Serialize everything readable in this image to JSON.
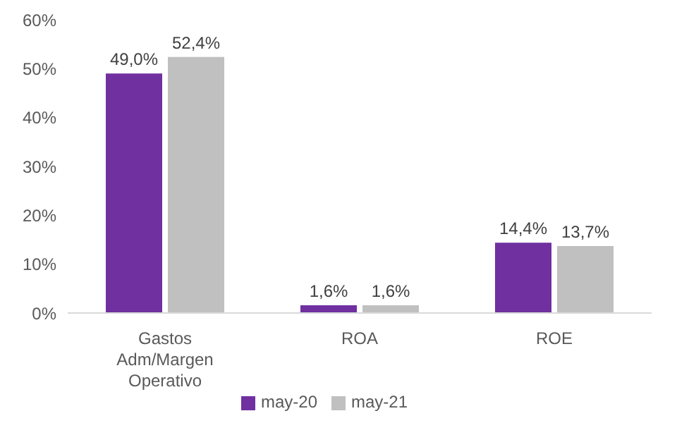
{
  "chart_data": {
    "type": "bar",
    "categories": [
      "Gastos Adm/Margen Operativo",
      "ROA",
      "ROE"
    ],
    "series": [
      {
        "name": "may-20",
        "color": "#7030a0",
        "values": [
          49.0,
          1.6,
          14.4
        ],
        "value_labels": [
          "49,0%",
          "1,6%",
          "14,4%"
        ]
      },
      {
        "name": "may-21",
        "color": "#c0c0c0",
        "values": [
          52.4,
          1.6,
          13.7
        ],
        "value_labels": [
          "52,4%",
          "1,6%",
          "13,7%"
        ]
      }
    ],
    "ylim": [
      0,
      60
    ],
    "yticks": [
      {
        "value": 0,
        "label": "0%"
      },
      {
        "value": 10,
        "label": "10%"
      },
      {
        "value": 20,
        "label": "20%"
      },
      {
        "value": 30,
        "label": "30%"
      },
      {
        "value": 40,
        "label": "40%"
      },
      {
        "value": 50,
        "label": "50%"
      },
      {
        "value": 60,
        "label": "60%"
      }
    ],
    "grid": false,
    "legend": "bottom"
  }
}
